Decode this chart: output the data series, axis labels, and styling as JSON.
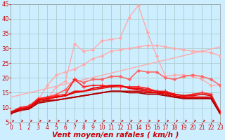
{
  "bg_color": "#cceeff",
  "grid_color": "#aacccc",
  "xlabel": "Vent moyen/en rafales ( km/h )",
  "xlim": [
    0,
    23
  ],
  "ylim": [
    5,
    45
  ],
  "yticks": [
    5,
    10,
    15,
    20,
    25,
    30,
    35,
    40,
    45
  ],
  "xticks": [
    0,
    1,
    2,
    3,
    4,
    5,
    6,
    7,
    8,
    9,
    10,
    11,
    12,
    13,
    14,
    15,
    16,
    17,
    18,
    19,
    20,
    21,
    22,
    23
  ],
  "series": [
    {
      "x": [
        0,
        23
      ],
      "y": [
        13.5,
        30.5
      ],
      "color": "#ffaaaa",
      "lw": 1.0,
      "marker": null,
      "ms": 0
    },
    {
      "x": [
        0,
        1,
        2,
        3,
        4,
        5,
        6,
        7,
        8,
        9,
        10,
        11,
        12,
        13,
        14,
        15,
        16,
        17,
        18,
        19,
        20,
        21,
        22,
        23
      ],
      "y": [
        8.0,
        9.0,
        10.0,
        12.5,
        17.5,
        21.0,
        22.0,
        23.0,
        24.5,
        26.5,
        27.5,
        29.0,
        29.5,
        30.0,
        30.5,
        31.0,
        31.0,
        30.5,
        30.0,
        29.5,
        29.0,
        29.0,
        28.5,
        27.5
      ],
      "color": "#ffaaaa",
      "lw": 1.0,
      "marker": "D",
      "ms": 2
    },
    {
      "x": [
        0,
        1,
        2,
        3,
        4,
        5,
        6,
        7,
        8,
        9,
        10,
        11,
        12,
        13,
        14,
        15,
        16,
        17,
        18,
        19,
        20,
        21,
        22,
        23
      ],
      "y": [
        8.0,
        9.0,
        10.0,
        12.5,
        13.0,
        17.0,
        19.0,
        31.5,
        29.0,
        29.5,
        32.5,
        33.0,
        33.5,
        40.5,
        44.5,
        35.5,
        27.5,
        20.5,
        21.0,
        21.0,
        20.5,
        19.5,
        17.5,
        17.5
      ],
      "color": "#ffaaaa",
      "lw": 1.0,
      "marker": "D",
      "ms": 2
    },
    {
      "x": [
        0,
        1,
        2,
        3,
        4,
        5,
        6,
        7,
        8,
        9,
        10,
        11,
        12,
        13,
        14,
        15,
        16,
        17,
        18,
        19,
        20,
        21,
        22,
        23
      ],
      "y": [
        8.0,
        9.5,
        10.5,
        12.5,
        13.5,
        14.5,
        16.0,
        19.5,
        18.5,
        19.5,
        19.5,
        20.5,
        20.5,
        19.5,
        22.5,
        22.0,
        22.0,
        20.0,
        19.5,
        20.5,
        21.0,
        20.5,
        19.5,
        17.5
      ],
      "color": "#ff6666",
      "lw": 1.2,
      "marker": "D",
      "ms": 2
    },
    {
      "x": [
        0,
        1,
        2,
        3,
        4,
        5,
        6,
        7,
        8,
        9,
        10,
        11,
        12,
        13,
        14,
        15,
        16,
        17,
        18,
        19,
        20,
        21,
        22,
        23
      ],
      "y": [
        8.5,
        10.0,
        10.5,
        13.0,
        13.5,
        14.0,
        14.5,
        19.5,
        17.0,
        17.5,
        17.5,
        17.0,
        17.0,
        17.0,
        17.0,
        16.5,
        15.5,
        15.5,
        14.5,
        14.0,
        14.5,
        15.0,
        14.5,
        8.5
      ],
      "color": "#ff2222",
      "lw": 1.2,
      "marker": "+",
      "ms": 4
    },
    {
      "x": [
        0,
        1,
        2,
        3,
        4,
        5,
        6,
        7,
        8,
        9,
        10,
        11,
        12,
        13,
        14,
        15,
        16,
        17,
        18,
        19,
        20,
        21,
        22,
        23
      ],
      "y": [
        8.5,
        9.5,
        10.0,
        12.0,
        12.5,
        12.5,
        13.0,
        13.5,
        14.0,
        14.5,
        15.0,
        15.5,
        15.5,
        15.5,
        15.5,
        15.0,
        15.0,
        14.5,
        13.5,
        13.5,
        13.5,
        13.5,
        13.5,
        8.0
      ],
      "color": "#cc0000",
      "lw": 1.3,
      "marker": null,
      "ms": 0
    },
    {
      "x": [
        0,
        1,
        2,
        3,
        4,
        5,
        6,
        7,
        8,
        9,
        10,
        11,
        12,
        13,
        14,
        15,
        16,
        17,
        18,
        19,
        20,
        21,
        22,
        23
      ],
      "y": [
        8.5,
        9.5,
        10.0,
        12.5,
        13.0,
        13.5,
        14.0,
        15.0,
        15.5,
        16.0,
        16.5,
        17.0,
        17.5,
        16.5,
        16.5,
        16.0,
        15.5,
        15.0,
        14.5,
        14.0,
        14.0,
        14.5,
        14.0,
        8.5
      ],
      "color": "#dd1111",
      "lw": 1.3,
      "marker": null,
      "ms": 0
    },
    {
      "x": [
        0,
        1,
        2,
        3,
        4,
        5,
        6,
        7,
        8,
        9,
        10,
        11,
        12,
        13,
        14,
        15,
        16,
        17,
        18,
        19,
        20,
        21,
        22,
        23
      ],
      "y": [
        8.0,
        9.5,
        10.0,
        12.5,
        13.0,
        13.5,
        14.0,
        15.5,
        15.5,
        16.5,
        17.0,
        17.5,
        17.5,
        16.5,
        16.0,
        15.5,
        15.0,
        15.0,
        14.0,
        13.5,
        13.5,
        13.5,
        13.0,
        8.0
      ],
      "color": "#ee0000",
      "lw": 1.3,
      "marker": null,
      "ms": 0
    },
    {
      "x": [
        0,
        1,
        2,
        3,
        4,
        5,
        6,
        7,
        8,
        9,
        10,
        11,
        12,
        13,
        14,
        15,
        16,
        17,
        18,
        19,
        20,
        21,
        22,
        23
      ],
      "y": [
        8.0,
        9.0,
        9.5,
        11.5,
        12.0,
        12.5,
        13.0,
        13.5,
        14.0,
        14.5,
        15.0,
        15.5,
        15.5,
        15.0,
        15.0,
        14.5,
        14.5,
        14.0,
        13.5,
        13.0,
        13.0,
        13.0,
        13.0,
        8.0
      ],
      "color": "#aa0000",
      "lw": 1.3,
      "marker": null,
      "ms": 0
    }
  ],
  "arrow_color": "#cc0000",
  "xlabel_color": "#cc0000",
  "xlabel_fontsize": 7.5,
  "tick_color": "#cc0000",
  "tick_fontsize": 6,
  "xtick_fontsize": 5.5
}
